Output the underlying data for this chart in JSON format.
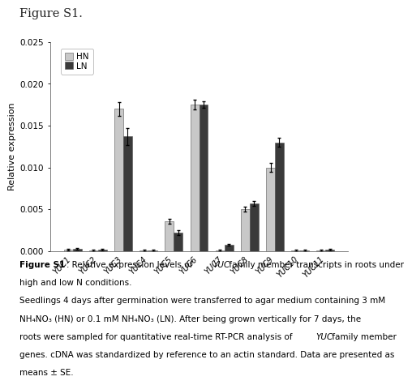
{
  "categories": [
    "YUC1",
    "YUC2",
    "YUC3",
    "YUC4",
    "YUC5",
    "YUC6",
    "YUC7",
    "YUC8",
    "YUC9",
    "YUC10",
    "YUC11"
  ],
  "HN_values": [
    0.0002,
    0.0001,
    0.017,
    0.0001,
    0.0036,
    0.0175,
    0.0001,
    0.005,
    0.01,
    0.0001,
    0.0001
  ],
  "LN_values": [
    0.0003,
    0.0002,
    0.0137,
    0.0001,
    0.0022,
    0.0175,
    0.0008,
    0.0057,
    0.013,
    0.0001,
    0.0002
  ],
  "HN_errors": [
    0.0001,
    0.0001,
    0.0008,
    0.0001,
    0.0003,
    0.0006,
    0.0001,
    0.0003,
    0.0005,
    0.0001,
    0.0001
  ],
  "LN_errors": [
    0.0001,
    0.0001,
    0.001,
    0.0001,
    0.0003,
    0.0004,
    0.0001,
    0.0003,
    0.0005,
    0.0001,
    0.0001
  ],
  "HN_color": "#c8c8c8",
  "LN_color": "#3a3a3a",
  "ylabel": "Relative expression",
  "ylim": [
    0,
    0.025
  ],
  "yticks": [
    0.0,
    0.005,
    0.01,
    0.015,
    0.02,
    0.025
  ],
  "figure_title": "Figure S1.",
  "bar_width": 0.35,
  "background_color": "#ffffff",
  "cap_line1_bold": "Figure S1",
  "cap_line1_normal": ". Relative expression levels of ",
  "cap_line1_italic": "YUC",
  "cap_line1_end": " family member transcripts in roots under",
  "cap_line2": "high and low N conditions.",
  "body_line1": "Seedlings 4 days after germination were transferred to agar medium containing 3 mM",
  "body_line2": "NH₄NO₃ (HN) or 0.1 mM NH₄NO₃ (LN). After being grown vertically for 7 days, the",
  "body_line3": "roots were sampled for quantitative real-time RT-PCR analysis of ",
  "body_line3_italic": "YUC",
  "body_line3_end": " family member",
  "body_line4": "genes. cDNA was standardized by reference to an actin standard. Data are presented as",
  "body_line5": "means ± SE."
}
